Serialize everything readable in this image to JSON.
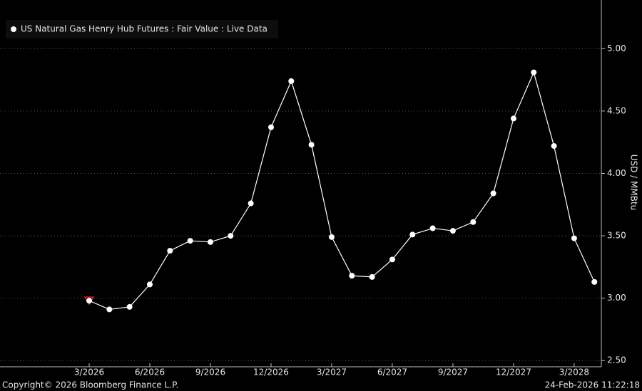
{
  "chart_data": {
    "type": "line",
    "categories": [
      "3/2026",
      null,
      null,
      "6/2026",
      null,
      null,
      "9/2026",
      null,
      null,
      "12/2026",
      null,
      null,
      "3/2027",
      null,
      null,
      "6/2027",
      null,
      null,
      "9/2027",
      null,
      null,
      "12/2027",
      null,
      null,
      "3/2028",
      null
    ],
    "series": [
      {
        "name": "US Natural Gas Henry Hub Futures : Fair Value : Live Data",
        "color": "#ffffff",
        "values": [
          2.98,
          2.91,
          2.93,
          3.11,
          3.38,
          3.46,
          3.45,
          3.5,
          3.76,
          4.37,
          4.74,
          4.23,
          3.49,
          3.18,
          3.17,
          3.31,
          3.51,
          3.56,
          3.54,
          3.61,
          3.84,
          4.44,
          4.81,
          4.22,
          3.48,
          3.13
        ]
      }
    ],
    "y_label": "USD / MMBtu",
    "ylim": [
      2.45,
      5.39
    ],
    "yticks": [
      {
        "value": 2.5,
        "label": "2.50"
      },
      {
        "value": 3,
        "label": "3.00"
      },
      {
        "value": 3.5,
        "label": "3.50"
      },
      {
        "value": 4,
        "label": "4.00"
      },
      {
        "value": 4.5,
        "label": "4.50"
      },
      {
        "value": 5,
        "label": "5.00"
      }
    ],
    "grid": true,
    "legend": "top-left",
    "copyright": "Copyright© 2026 Bloomberg Finance L.P.",
    "timestamp": "24-Feb-2026 11:22:18"
  }
}
